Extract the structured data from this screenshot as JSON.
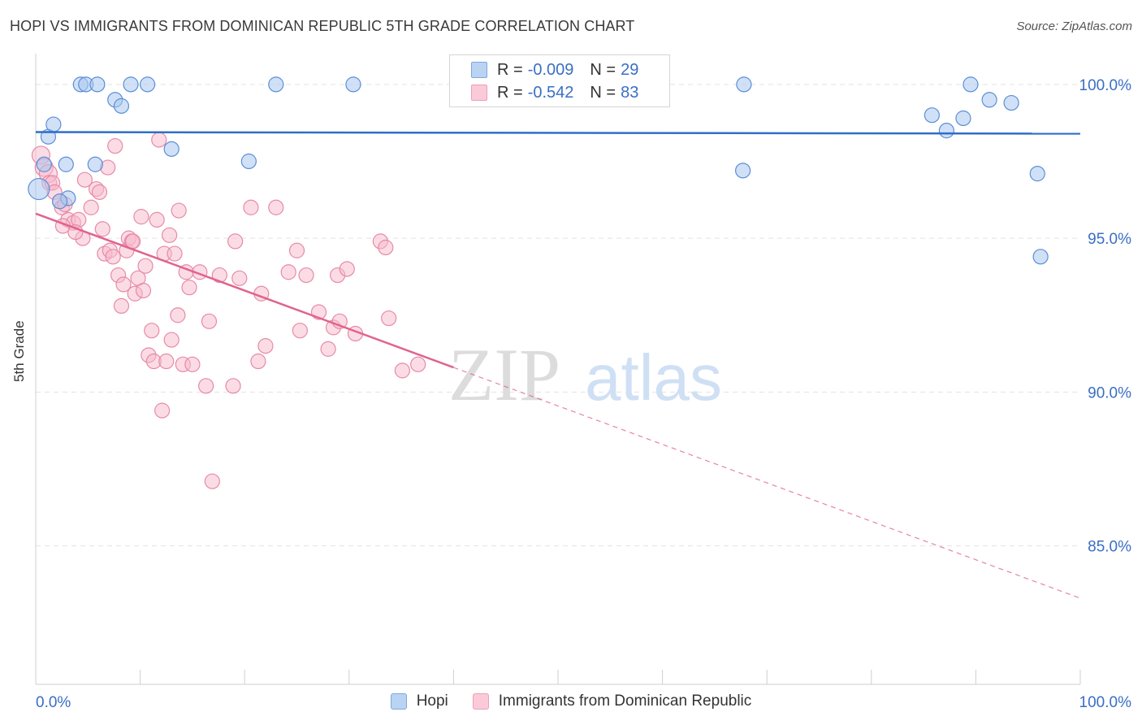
{
  "header": {
    "title": "HOPI VS IMMIGRANTS FROM DOMINICAN REPUBLIC 5TH GRADE CORRELATION CHART",
    "source": "Source: ZipAtlas.com"
  },
  "legend": {
    "series": [
      {
        "r_label": "R =",
        "r_value": "-0.009",
        "n_label": "N =",
        "n_value": "29"
      },
      {
        "r_label": "R =",
        "r_value": "-0.542",
        "n_label": "N =",
        "n_value": "83"
      }
    ]
  },
  "bottom_legend": {
    "items": [
      {
        "label": "Hopi"
      },
      {
        "label": "Immigrants from Dominican Republic"
      }
    ]
  },
  "watermark": {
    "part1": "ZIP",
    "part2": "atlas"
  },
  "colors": {
    "hopi_fill": "#a9c8f0",
    "hopi_stroke": "#5b8ed6",
    "hopi_line": "#2f6ec8",
    "dom_fill": "#f7b9cc",
    "dom_stroke": "#e78aa8",
    "dom_line": "#e0648f",
    "grid": "#e3e3e3",
    "axis_text": "#3a6fc4"
  },
  "chart_data": {
    "type": "scatter",
    "title": "HOPI VS IMMIGRANTS FROM DOMINICAN REPUBLIC 5TH GRADE CORRELATION CHART",
    "xlabel": "",
    "ylabel": "5th Grade",
    "xlim": [
      0,
      100
    ],
    "ylim": [
      80.5,
      101.0
    ],
    "x_tick_labels": [
      "0.0%",
      "100.0%"
    ],
    "y_ticks": [
      85.0,
      90.0,
      95.0,
      100.0
    ],
    "y_tick_labels": [
      "85.0%",
      "90.0%",
      "95.0%",
      "100.0%"
    ],
    "series": [
      {
        "name": "Hopi",
        "r": -0.009,
        "n": 29,
        "trend": {
          "x0": 0,
          "y0": 98.45,
          "x1": 100,
          "y1": 98.4,
          "solid_until": 100
        },
        "points": [
          [
            0.3,
            96.6,
            12
          ],
          [
            1.2,
            98.3,
            8
          ],
          [
            1.7,
            98.7,
            8
          ],
          [
            2.9,
            97.4,
            8
          ],
          [
            3.1,
            96.3,
            8
          ],
          [
            2.3,
            96.2,
            8
          ],
          [
            4.3,
            100.0,
            8
          ],
          [
            4.8,
            100.0,
            8
          ],
          [
            5.9,
            100.0,
            8
          ],
          [
            7.6,
            99.5,
            8
          ],
          [
            8.2,
            99.3,
            8
          ],
          [
            9.1,
            100.0,
            8
          ],
          [
            10.7,
            100.0,
            8
          ],
          [
            5.7,
            97.4,
            8
          ],
          [
            13.0,
            97.9,
            8
          ],
          [
            20.4,
            97.5,
            8
          ],
          [
            23.0,
            100.0,
            8
          ],
          [
            30.4,
            100.0,
            8
          ],
          [
            67.7,
            97.2,
            8
          ],
          [
            67.8,
            100.0,
            8
          ],
          [
            85.8,
            99.0,
            8
          ],
          [
            87.2,
            98.5,
            8
          ],
          [
            88.8,
            98.9,
            8
          ],
          [
            89.5,
            100.0,
            8
          ],
          [
            91.3,
            99.5,
            8
          ],
          [
            93.4,
            99.4,
            8
          ],
          [
            95.9,
            97.1,
            8
          ],
          [
            96.2,
            94.4,
            8
          ],
          [
            0.8,
            97.4,
            8
          ]
        ]
      },
      {
        "name": "Immigrants from Dominican Republic",
        "r": -0.542,
        "n": 83,
        "trend": {
          "x0": 0,
          "y0": 95.8,
          "x1": 100,
          "y1": 83.3,
          "solid_until": 40
        },
        "points": [
          [
            0.5,
            97.7,
            10
          ],
          [
            0.8,
            97.3,
            10
          ],
          [
            1.2,
            97.1,
            10
          ],
          [
            1.3,
            96.8,
            8
          ],
          [
            1.6,
            96.8,
            8
          ],
          [
            1.8,
            96.5,
            8
          ],
          [
            2.3,
            96.2,
            8
          ],
          [
            2.5,
            96.0,
            8
          ],
          [
            2.8,
            96.1,
            8
          ],
          [
            3.1,
            95.6,
            8
          ],
          [
            3.6,
            95.5,
            8
          ],
          [
            4.1,
            95.6,
            8
          ],
          [
            2.6,
            95.4,
            8
          ],
          [
            4.5,
            95.0,
            8
          ],
          [
            4.7,
            96.9,
            8
          ],
          [
            5.3,
            96.0,
            8
          ],
          [
            5.8,
            96.6,
            8
          ],
          [
            6.1,
            96.5,
            8
          ],
          [
            6.4,
            95.3,
            8
          ],
          [
            6.6,
            94.5,
            8
          ],
          [
            6.9,
            97.3,
            8
          ],
          [
            7.1,
            94.6,
            8
          ],
          [
            7.4,
            94.4,
            8
          ],
          [
            7.6,
            98.0,
            8
          ],
          [
            7.9,
            93.8,
            8
          ],
          [
            8.2,
            92.8,
            8
          ],
          [
            8.4,
            93.5,
            8
          ],
          [
            8.7,
            94.6,
            8
          ],
          [
            8.9,
            95.0,
            8
          ],
          [
            9.2,
            94.9,
            8
          ],
          [
            9.5,
            93.2,
            8
          ],
          [
            9.8,
            93.7,
            8
          ],
          [
            10.1,
            95.7,
            8
          ],
          [
            10.3,
            93.3,
            8
          ],
          [
            10.5,
            94.1,
            8
          ],
          [
            10.8,
            91.2,
            8
          ],
          [
            11.1,
            92.0,
            8
          ],
          [
            11.3,
            91.0,
            8
          ],
          [
            11.6,
            95.6,
            8
          ],
          [
            11.8,
            98.2,
            8
          ],
          [
            12.1,
            89.4,
            8
          ],
          [
            12.3,
            94.5,
            8
          ],
          [
            12.5,
            91.0,
            8
          ],
          [
            12.8,
            95.1,
            8
          ],
          [
            13.0,
            91.7,
            8
          ],
          [
            13.3,
            94.5,
            8
          ],
          [
            13.7,
            95.9,
            8
          ],
          [
            14.1,
            90.9,
            8
          ],
          [
            14.4,
            93.9,
            8
          ],
          [
            14.7,
            93.4,
            8
          ],
          [
            15.0,
            90.9,
            8
          ],
          [
            15.7,
            93.9,
            8
          ],
          [
            16.3,
            90.2,
            8
          ],
          [
            16.6,
            92.3,
            8
          ],
          [
            16.9,
            87.1,
            8
          ],
          [
            17.6,
            93.8,
            8
          ],
          [
            18.9,
            90.2,
            8
          ],
          [
            19.1,
            94.9,
            8
          ],
          [
            19.5,
            93.7,
            8
          ],
          [
            20.6,
            96.0,
            8
          ],
          [
            21.3,
            91.0,
            8
          ],
          [
            21.6,
            93.2,
            8
          ],
          [
            23.0,
            96.0,
            8
          ],
          [
            24.2,
            93.9,
            8
          ],
          [
            25.0,
            94.6,
            8
          ],
          [
            25.3,
            92.0,
            8
          ],
          [
            25.9,
            93.8,
            8
          ],
          [
            27.1,
            92.6,
            8
          ],
          [
            28.0,
            91.4,
            8
          ],
          [
            28.5,
            92.1,
            8
          ],
          [
            28.9,
            93.8,
            8
          ],
          [
            29.1,
            92.3,
            8
          ],
          [
            30.6,
            91.9,
            8
          ],
          [
            33.0,
            94.9,
            8
          ],
          [
            33.5,
            94.7,
            8
          ],
          [
            33.8,
            92.4,
            8
          ],
          [
            35.1,
            90.7,
            8
          ],
          [
            36.6,
            90.9,
            8
          ],
          [
            3.8,
            95.2,
            8
          ],
          [
            9.3,
            94.9,
            8
          ],
          [
            13.6,
            92.5,
            8
          ],
          [
            22.0,
            91.5,
            8
          ],
          [
            29.8,
            94.0,
            8
          ]
        ]
      }
    ]
  }
}
